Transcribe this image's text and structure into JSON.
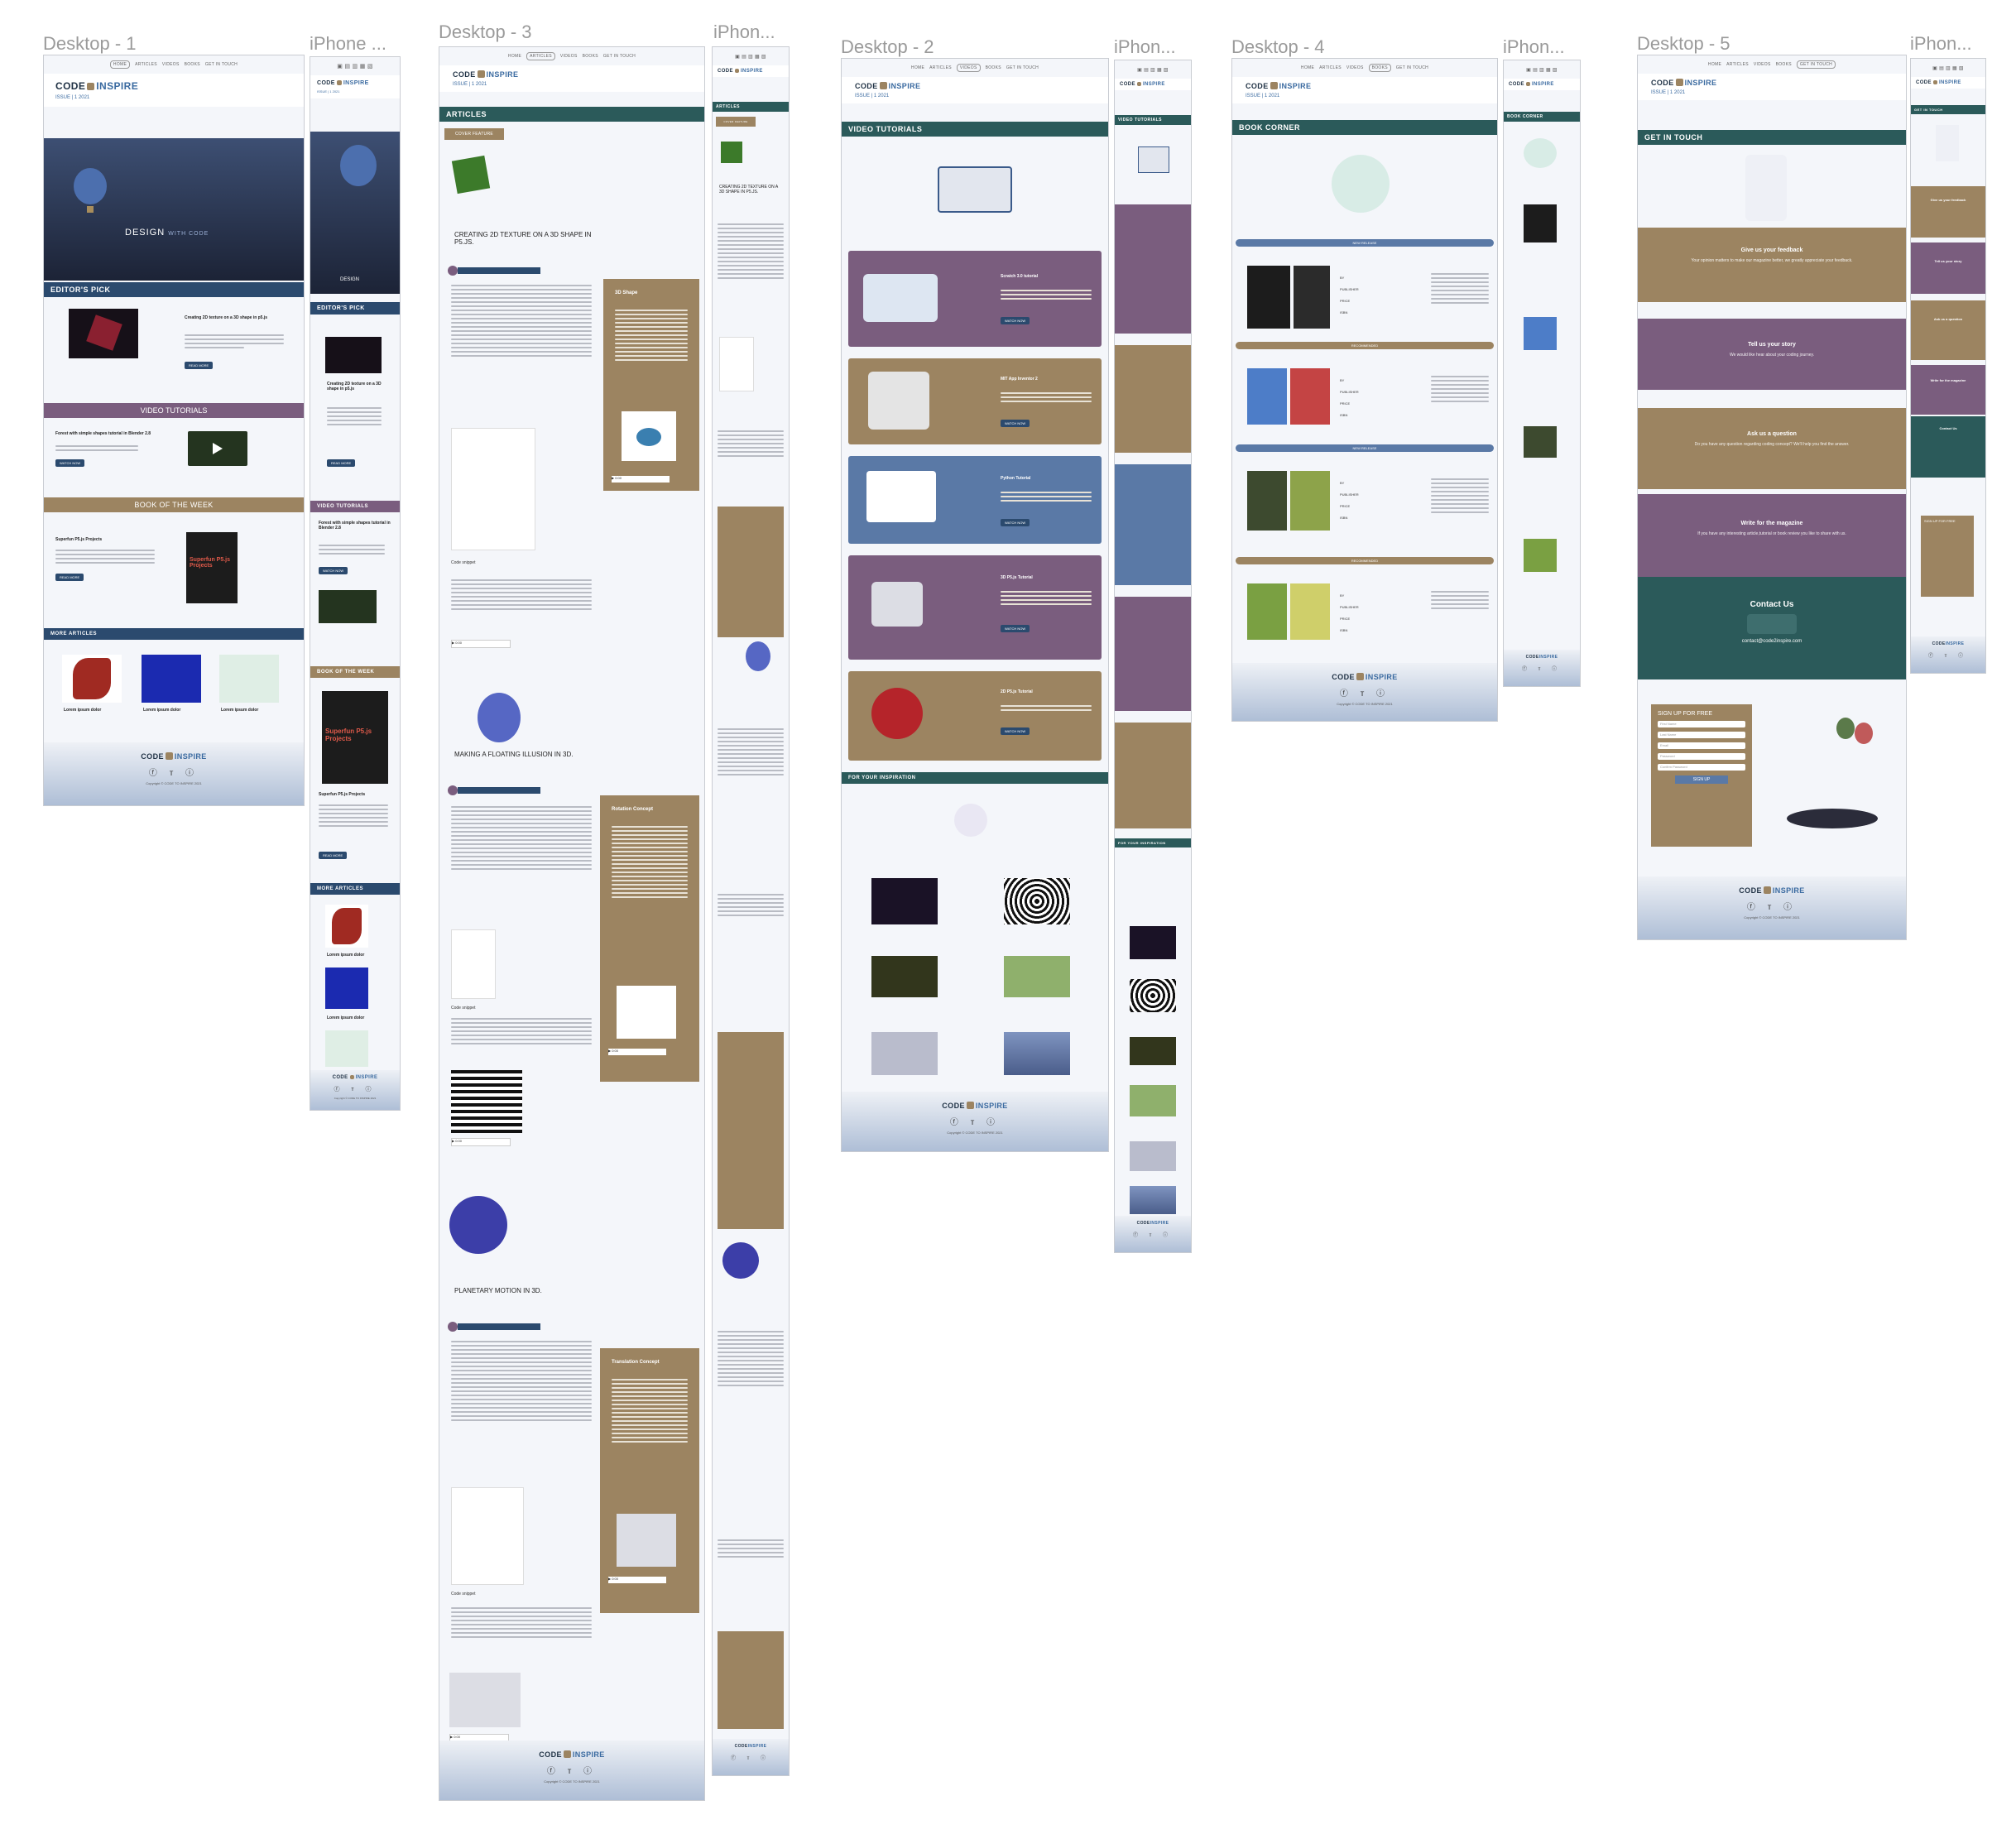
{
  "frames": [
    {
      "id": "d1",
      "label": "Desktop - 1"
    },
    {
      "id": "p1",
      "label": "iPhone ..."
    },
    {
      "id": "d3",
      "label": "Desktop - 3"
    },
    {
      "id": "p3",
      "label": "iPhon..."
    },
    {
      "id": "d2",
      "label": "Desktop - 2"
    },
    {
      "id": "p2",
      "label": "iPhon..."
    },
    {
      "id": "d4",
      "label": "Desktop - 4"
    },
    {
      "id": "p4",
      "label": "iPhon..."
    },
    {
      "id": "d5",
      "label": "Desktop - 5"
    },
    {
      "id": "p5",
      "label": "iPhon..."
    }
  ],
  "site": {
    "nav": [
      "HOME",
      "ARTICLES",
      "VIDEOS",
      "BOOKS",
      "GET IN TOUCH"
    ],
    "brand_left": "CODE",
    "brand_right": "INSPIRE",
    "issue": "ISSUE | 1 2021",
    "footer_copy": "Copyright © CODE TO INSPIRE 2021",
    "social": "ⓕ ᴛ ⓘ",
    "read_more": "READ MORE",
    "watch_now": "WATCH NOW"
  },
  "home": {
    "hero_text": "DESIGN",
    "hero_sub": "WITH CODE",
    "editors_pick": "EDITOR'S PICK",
    "editors_title": "Creating 2D texture on a 3D shape in p5.js",
    "video_tutorials": "VIDEO TUTORIALS",
    "video_title": "Forest with simple shapes tutorial in Blender 2.8",
    "book_of_week": "BOOK OF THE WEEK",
    "book_title": "Superfun P5.js Projects",
    "book_cover": "Superfun P5.js Projects",
    "more_articles": "MORE ARTICLES",
    "lorem": "Lorem ipsum dolor"
  },
  "articles": {
    "heading": "ARTICLES",
    "cover_feature": "COVER FEATURE",
    "a1_title": "CREATING 2D TEXTURE ON A 3D SHAPE IN P5.JS.",
    "a1_side": "3D Shape",
    "a2_title": "MAKING A FLOATING ILLUSION IN 3D.",
    "a2_side": "Rotation Concept",
    "a3_title": "PLANETARY MOTION IN 3D.",
    "a3_side": "Translation Concept",
    "code_label": "Code snippet"
  },
  "videos": {
    "heading": "VIDEO   TUTORIALS",
    "items": [
      "Scratch 3.0 tutorial",
      "MIT App Inventor 2",
      "Python Tutorial",
      "3D P5.js Tutorial",
      "2D P5.js Tutorial"
    ],
    "inspiration": "FOR YOUR INSPIRATION"
  },
  "books": {
    "heading": "BOOK CORNER",
    "tags": [
      "NEW RELEASE",
      "RECOMMENDED",
      "NEW RELEASE",
      "RECOMMENDED"
    ],
    "labels": [
      "BY",
      "PUBLISHER",
      "PRICE",
      "ISBN"
    ]
  },
  "contact": {
    "heading": "GET IN TOUCH",
    "bands": [
      {
        "title": "Give us your feedback",
        "sub": "Your opinion matters to make our magazine better, we greatly appreciate your feedback."
      },
      {
        "title": "Tell us your story",
        "sub": "We would like hear about your coding journey."
      },
      {
        "title": "Ask us a question",
        "sub": "Do you have any question regarding coding concept? We'll help you find the answer."
      },
      {
        "title": "Write for the magazine",
        "sub": "If you have any interesting article,tutorial or book review you like to share with us."
      }
    ],
    "contact_us": "Contact Us",
    "email": "contact@code2inspire.com",
    "signup": "SIGN UP FOR FREE",
    "fields": [
      "First Name",
      "Last Name",
      "Email",
      "Password",
      "Confirm Password"
    ],
    "signup_btn": "SIGN UP"
  },
  "colors": {
    "teal": "#2b5a5a",
    "tan": "#9c8461",
    "purple": "#7a5d7e",
    "blue": "#5a79a6",
    "navy": "#2b4a6e"
  }
}
